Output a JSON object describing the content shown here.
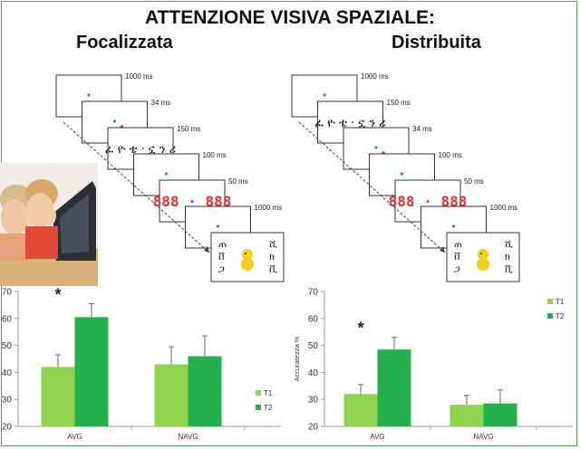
{
  "title": "ATTENZIONE VISIVA SPAZIALE:",
  "focused_label": "Focalizzata",
  "distributed_label": "Distribuita",
  "colors": {
    "t1": "#8fd24d",
    "t2": "#22b14c",
    "fixation": "#22aa44",
    "cue": "#e53030",
    "mask": "#e53030"
  },
  "left_sequence": [
    {
      "ms": "1000 ms",
      "content": "dot"
    },
    {
      "ms": "34 ms",
      "content": "dot+cue"
    },
    {
      "ms": "150 ms",
      "content": "glyphs"
    },
    {
      "ms": "100 ms",
      "content": "dot"
    },
    {
      "ms": "50 ms",
      "content": "mask"
    },
    {
      "ms": "1000 ms",
      "content": "dot"
    },
    {
      "ms": "",
      "content": "response"
    }
  ],
  "right_sequence": [
    {
      "ms": "1000 ms",
      "content": "dot"
    },
    {
      "ms": "150 ms",
      "content": "glyphs"
    },
    {
      "ms": "34 ms",
      "content": "dot+cue"
    },
    {
      "ms": "100 ms",
      "content": "dot"
    },
    {
      "ms": "50 ms",
      "content": "mask"
    },
    {
      "ms": "1000 ms",
      "content": "dot"
    },
    {
      "ms": "",
      "content": "response"
    }
  ],
  "glyphs_text": "ፈ ዮ ቴ · ኗ ን ሪ",
  "mask_text": "888 · 888",
  "chart_data": [
    {
      "type": "bar",
      "categories": [
        "AVG",
        "NAVG"
      ],
      "series": [
        {
          "name": "T1",
          "values": [
            42,
            43
          ],
          "errors": [
            4.5,
            6.5
          ],
          "color": "#8fd24d"
        },
        {
          "name": "T2",
          "values": [
            60.5,
            46
          ],
          "errors": [
            5,
            7.5
          ],
          "color": "#22b14c"
        }
      ],
      "ylim": [
        20,
        70
      ],
      "yticks": [
        "20",
        "30",
        "40",
        "50",
        "60",
        "70"
      ],
      "ylabel": "",
      "annotation": "*",
      "legend": "right"
    },
    {
      "type": "bar",
      "categories": [
        "AVG",
        "NAVG"
      ],
      "series": [
        {
          "name": "T1",
          "values": [
            32,
            28
          ],
          "errors": [
            3.5,
            3.5
          ],
          "color": "#8fd24d"
        },
        {
          "name": "T2",
          "values": [
            48.5,
            28.5
          ],
          "errors": [
            4.5,
            5
          ],
          "color": "#22b14c"
        }
      ],
      "ylim": [
        20,
        70
      ],
      "yticks": [
        "20",
        "30",
        "40",
        "50",
        "60",
        "70"
      ],
      "ylabel": "Accuratezza %",
      "annotation": "*",
      "legend": "top-right"
    }
  ]
}
